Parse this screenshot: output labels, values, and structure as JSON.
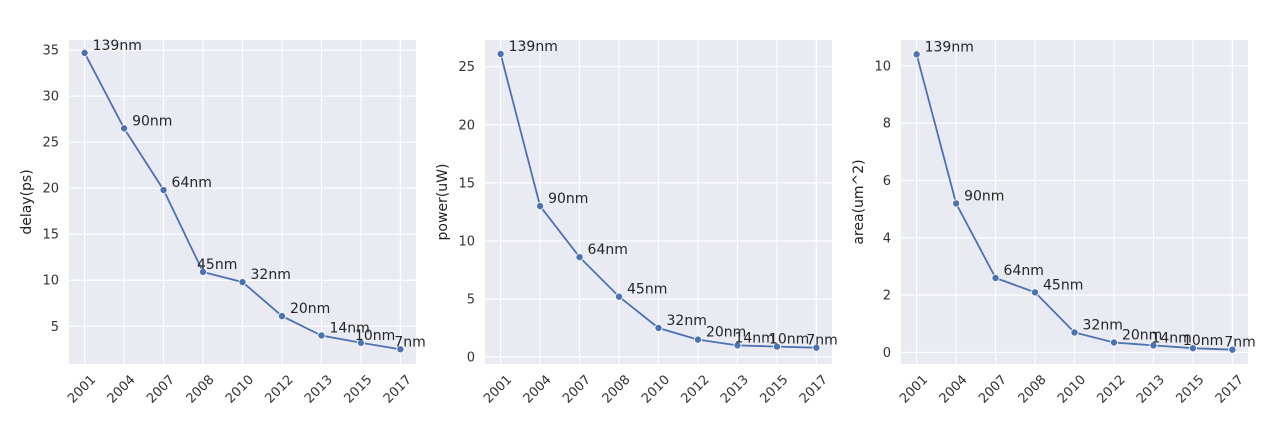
{
  "chart_data": [
    {
      "type": "line",
      "title": "",
      "xlabel": "",
      "ylabel": "delay(ps)",
      "categories": [
        "2001",
        "2004",
        "2007",
        "2008",
        "2010",
        "2012",
        "2013",
        "2015",
        "2017"
      ],
      "values": [
        34.7,
        26.5,
        19.8,
        10.9,
        9.8,
        6.1,
        4.0,
        3.2,
        2.5
      ],
      "point_labels": [
        "139nm",
        "90nm",
        "64nm",
        "45nm",
        "32nm",
        "20nm",
        "14nm",
        "10nm",
        "7nm"
      ],
      "ylim": [
        0.9,
        36.1
      ],
      "yticks": [
        5,
        10,
        15,
        20,
        25,
        30,
        35
      ],
      "grid": true,
      "line_color": "#4c72b0",
      "background": "#eaeaf2"
    },
    {
      "type": "line",
      "title": "",
      "xlabel": "",
      "ylabel": "power(uW)",
      "categories": [
        "2001",
        "2004",
        "2007",
        "2008",
        "2010",
        "2012",
        "2013",
        "2015",
        "2017"
      ],
      "values": [
        26.1,
        13.0,
        8.6,
        5.2,
        2.5,
        1.5,
        1.0,
        0.9,
        0.8
      ],
      "point_labels": [
        "139nm",
        "90nm",
        "64nm",
        "45nm",
        "32nm",
        "20nm",
        "14nm",
        "10nm",
        "7nm"
      ],
      "ylim": [
        -0.6,
        27.3
      ],
      "yticks": [
        0,
        5,
        10,
        15,
        20,
        25
      ],
      "grid": true,
      "line_color": "#4c72b0",
      "background": "#eaeaf2"
    },
    {
      "type": "line",
      "title": "",
      "xlabel": "",
      "ylabel": "area(um^2)",
      "categories": [
        "2001",
        "2004",
        "2007",
        "2008",
        "2010",
        "2012",
        "2013",
        "2015",
        "2017"
      ],
      "values": [
        10.4,
        5.2,
        2.6,
        2.1,
        0.7,
        0.35,
        0.25,
        0.15,
        0.1
      ],
      "point_labels": [
        "139nm",
        "90nm",
        "64nm",
        "45nm",
        "32nm",
        "20nm",
        "14nm",
        "10nm",
        "7nm"
      ],
      "ylim": [
        -0.4,
        10.9
      ],
      "yticks": [
        0,
        2,
        4,
        6,
        8,
        10
      ],
      "grid": true,
      "line_color": "#4c72b0",
      "background": "#eaeaf2"
    }
  ]
}
